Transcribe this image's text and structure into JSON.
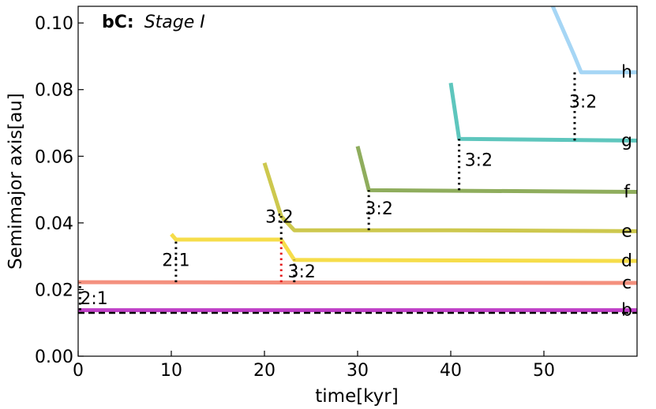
{
  "chart_data": {
    "type": "line",
    "panel_label_bold": "bC:",
    "panel_label_italic": "Stage I",
    "xlabel": "time[kyr]",
    "ylabel": "Semimajor axis[au]",
    "xlim": [
      0,
      60
    ],
    "ylim": [
      0,
      0.105
    ],
    "x_ticks": [
      0,
      10,
      20,
      30,
      40,
      50
    ],
    "x_tick_labels": [
      "0",
      "10",
      "20",
      "30",
      "40",
      "50"
    ],
    "y_ticks": [
      0,
      0.02,
      0.04,
      0.06,
      0.08,
      0.1
    ],
    "y_tick_labels": [
      "0.00",
      "0.02",
      "0.04",
      "0.06",
      "0.08",
      "0.10"
    ],
    "grid": false,
    "series": [
      {
        "name": "b",
        "color": "#c03fc8",
        "x": [
          0,
          60
        ],
        "y": [
          0.0138,
          0.0138
        ]
      },
      {
        "name": "c",
        "color": "#f4907e",
        "x": [
          0,
          60
        ],
        "y": [
          0.0222,
          0.022
        ]
      },
      {
        "name": "d",
        "color": "#f6dd4a",
        "x": [
          10,
          10.5,
          21.8,
          23.2,
          60
        ],
        "y": [
          0.0366,
          0.035,
          0.035,
          0.0289,
          0.0286
        ]
      },
      {
        "name": "e",
        "color": "#cdc84e",
        "x": [
          20,
          21.8,
          23.2,
          40,
          60
        ],
        "y": [
          0.058,
          0.042,
          0.0378,
          0.0378,
          0.0375
        ]
      },
      {
        "name": "f",
        "color": "#8fad5d",
        "x": [
          30,
          31.2,
          60
        ],
        "y": [
          0.063,
          0.0498,
          0.0493
        ]
      },
      {
        "name": "g",
        "color": "#5ec6bd",
        "x": [
          40,
          40.9,
          60
        ],
        "y": [
          0.082,
          0.0652,
          0.0647
        ]
      },
      {
        "name": "h",
        "color": "#a6d6f5",
        "x": [
          50.8,
          53.3,
          54,
          60
        ],
        "y": [
          0.106,
          0.09,
          0.0852,
          0.0852
        ]
      }
    ],
    "reference_line": {
      "y": 0.013,
      "style": "dashed",
      "color": "#000000"
    },
    "resonances": [
      {
        "label": "2:1",
        "x": 0.2,
        "y_from": 0.0138,
        "y_to": 0.0222,
        "color": "#000000",
        "label_x": 1.7,
        "label_y": 0.0175
      },
      {
        "label": "2:1",
        "x": 10.5,
        "y_from": 0.0222,
        "y_to": 0.035,
        "color": "#000000",
        "label_x": 10.5,
        "label_y": 0.029
      },
      {
        "label": "3:2",
        "x": 21.8,
        "y_from": 0.0222,
        "y_to": 0.035,
        "color": "#e41a1c",
        "label_x": 0,
        "label_y": 0
      },
      {
        "label": "3:2",
        "x": 21.8,
        "y_from": 0.035,
        "y_to": 0.042,
        "color": "#000000",
        "label_x": 21.6,
        "label_y": 0.042
      },
      {
        "label": "3:2",
        "x": 23.2,
        "y_from": 0.0222,
        "y_to": 0.0289,
        "color": "#000000",
        "label_x": 24.0,
        "label_y": 0.0255
      },
      {
        "label": "3:2",
        "x": 31.2,
        "y_from": 0.0378,
        "y_to": 0.0498,
        "color": "#000000",
        "label_x": 32.3,
        "label_y": 0.0445
      },
      {
        "label": "3:2",
        "x": 40.9,
        "y_from": 0.0498,
        "y_to": 0.0652,
        "color": "#000000",
        "label_x": 43.0,
        "label_y": 0.059
      },
      {
        "label": "3:2",
        "x": 53.3,
        "y_from": 0.0647,
        "y_to": 0.0852,
        "color": "#000000",
        "label_x": 54.2,
        "label_y": 0.0765
      }
    ]
  }
}
